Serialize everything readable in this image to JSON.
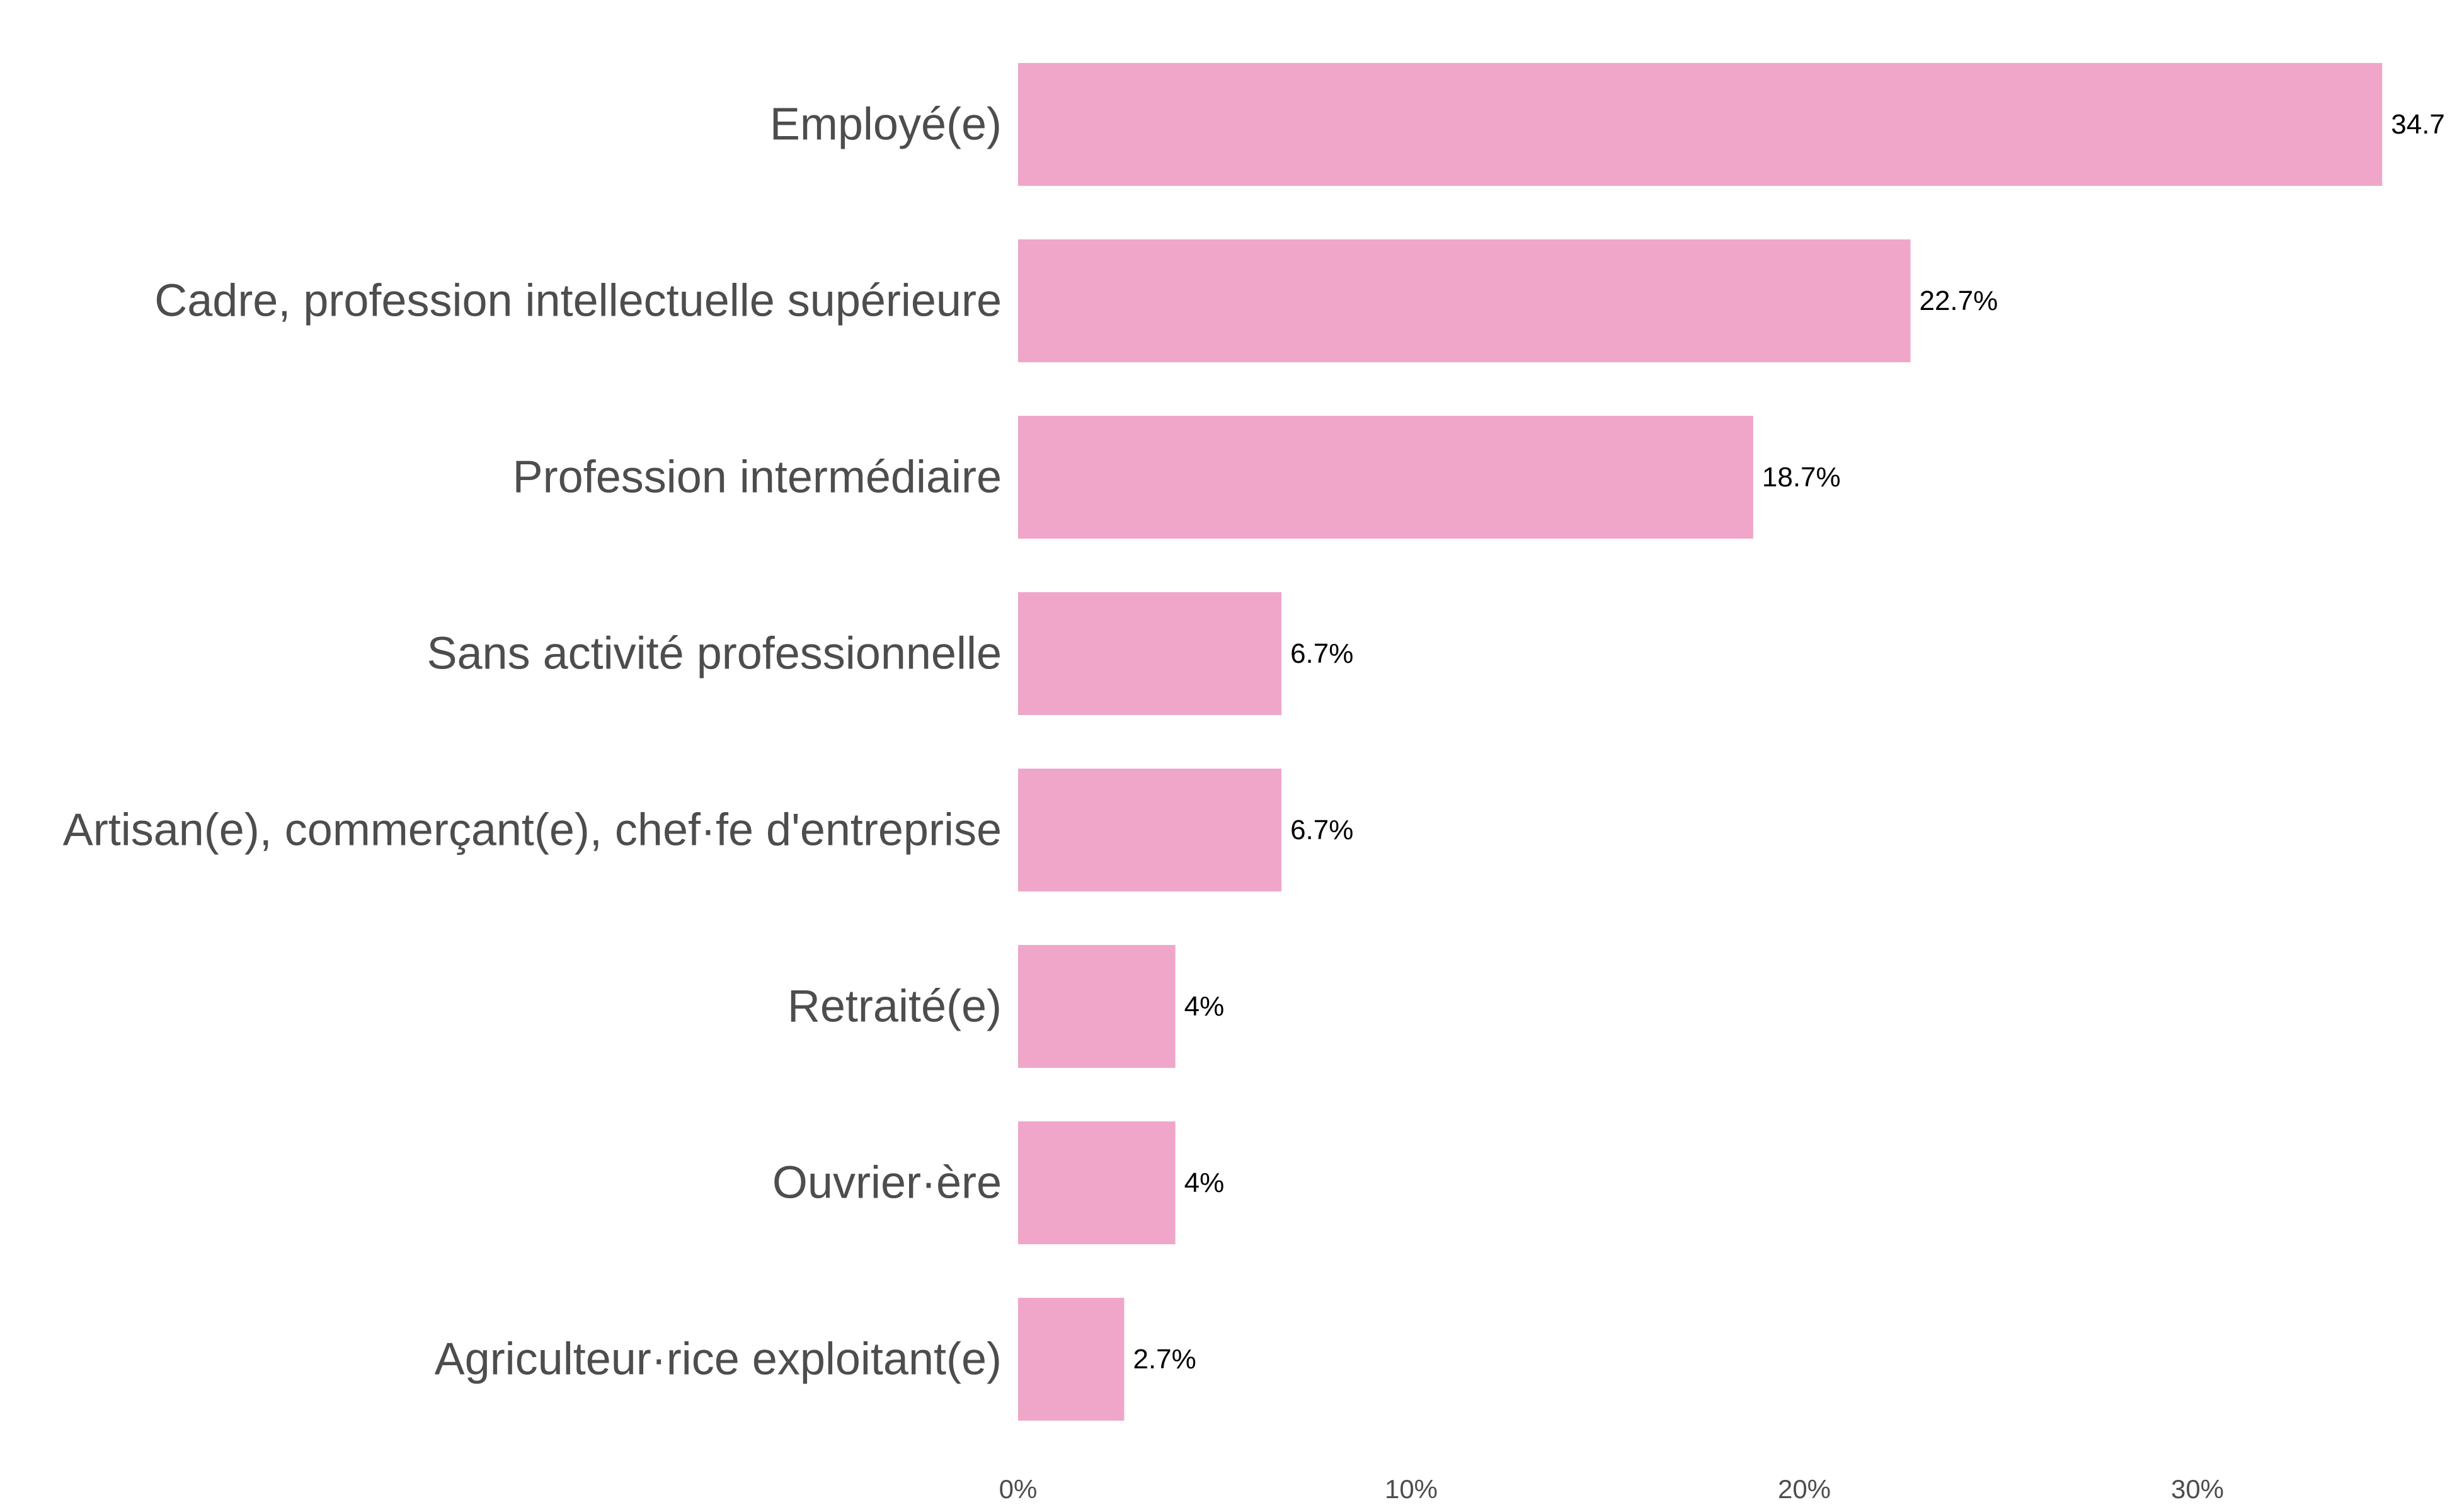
{
  "chart_data": {
    "type": "bar",
    "orientation": "horizontal",
    "categories": [
      "Employé(e)",
      "Cadre, profession intellectuelle supérieure",
      "Profession intermédiaire",
      "Sans activité professionnelle",
      "Artisan(e), commerçant(e), chef·fe d'entreprise",
      "Retraité(e)",
      "Ouvrier·ère",
      "Agriculteur·rice exploitant(e)"
    ],
    "values": [
      34.7,
      22.7,
      18.7,
      6.7,
      6.7,
      4,
      4,
      2.7
    ],
    "value_labels": [
      "34.7",
      "22.7%",
      "18.7%",
      "6.7%",
      "6.7%",
      "4%",
      "4%",
      "2.7%"
    ],
    "x_ticks": [
      0,
      10,
      20,
      30
    ],
    "x_tick_labels": [
      "0%",
      "10%",
      "20%",
      "30%"
    ],
    "xlim": [
      0,
      35.2
    ],
    "bar_color": "#f0a6c9",
    "title": "",
    "xlabel": "",
    "ylabel": "",
    "grid": false,
    "legend": false
  }
}
